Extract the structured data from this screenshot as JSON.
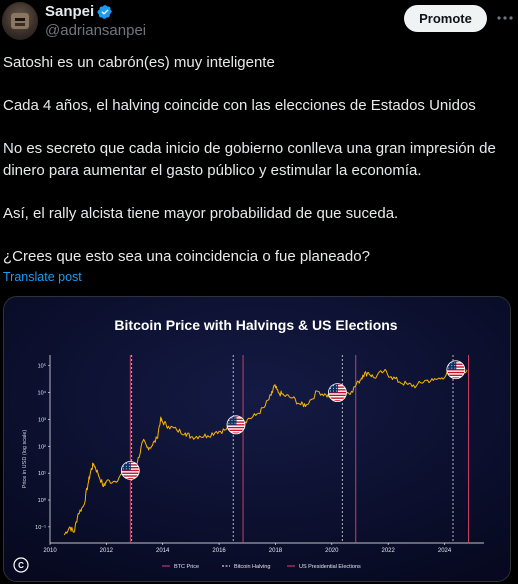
{
  "author": {
    "display_name": "Sanpei",
    "handle": "@adriansanpei",
    "verified": true,
    "verified_color": "#1d9bf0"
  },
  "header": {
    "promote_label": "Promote",
    "more_icon": "more-horizontal-icon"
  },
  "tweet": {
    "paragraphs": [
      "Satoshi es un cabrón(es) muy inteligente",
      "Cada 4 años, el halving coincide con las elecciones de Estados Unidos",
      "No es secreto que cada inicio de gobierno conlleva una gran impresión de dinero para aumentar el gasto público y estimular la economía.",
      "Así, el rally alcista tiene mayor probabilidad de que suceda.",
      "¿Crees que esto sea una coincidencia o fue planeado?"
    ],
    "translate_label": "Translate post"
  },
  "chart_data": {
    "type": "line",
    "title": "Bitcoin Price with Halvings & US Elections",
    "ylabel": "Price in USD (log scale)",
    "xlabel": "",
    "x_ticks": [
      "2010",
      "2012",
      "2014",
      "2016",
      "2018",
      "2020",
      "2022",
      "2024"
    ],
    "y_ticks": [
      "10⁻¹",
      "10⁰",
      "10¹",
      "10²",
      "10³",
      "10⁴",
      "10⁵"
    ],
    "xlim": [
      2010,
      2025.4
    ],
    "ylim_log10": [
      -1.6,
      5.4
    ],
    "series": [
      {
        "name": "BTC Price",
        "color": "#f7b500",
        "points": [
          [
            2010.5,
            -1.3
          ],
          [
            2010.7,
            -1.0
          ],
          [
            2010.85,
            -1.2
          ],
          [
            2011.0,
            -0.5
          ],
          [
            2011.2,
            -0.2
          ],
          [
            2011.35,
            0.6
          ],
          [
            2011.45,
            1.1
          ],
          [
            2011.55,
            1.35
          ],
          [
            2011.7,
            1.0
          ],
          [
            2011.9,
            0.5
          ],
          [
            2012.0,
            0.7
          ],
          [
            2012.3,
            0.7
          ],
          [
            2012.6,
            1.0
          ],
          [
            2012.85,
            1.05
          ],
          [
            2013.1,
            1.4
          ],
          [
            2013.3,
            2.2
          ],
          [
            2013.45,
            1.95
          ],
          [
            2013.6,
            2.0
          ],
          [
            2013.8,
            2.3
          ],
          [
            2013.92,
            3.0
          ],
          [
            2014.0,
            2.9
          ],
          [
            2014.2,
            2.75
          ],
          [
            2014.5,
            2.6
          ],
          [
            2014.8,
            2.5
          ],
          [
            2015.0,
            2.35
          ],
          [
            2015.3,
            2.38
          ],
          [
            2015.6,
            2.4
          ],
          [
            2015.9,
            2.55
          ],
          [
            2016.2,
            2.6
          ],
          [
            2016.5,
            2.8
          ],
          [
            2016.8,
            2.85
          ],
          [
            2017.0,
            3.0
          ],
          [
            2017.3,
            3.15
          ],
          [
            2017.6,
            3.45
          ],
          [
            2017.85,
            3.9
          ],
          [
            2017.96,
            4.25
          ],
          [
            2018.1,
            4.0
          ],
          [
            2018.3,
            3.9
          ],
          [
            2018.6,
            3.8
          ],
          [
            2018.9,
            3.55
          ],
          [
            2019.1,
            3.55
          ],
          [
            2019.5,
            4.05
          ],
          [
            2019.8,
            3.9
          ],
          [
            2020.0,
            3.85
          ],
          [
            2020.2,
            3.7
          ],
          [
            2020.4,
            3.95
          ],
          [
            2020.7,
            4.05
          ],
          [
            2020.95,
            4.4
          ],
          [
            2021.1,
            4.65
          ],
          [
            2021.3,
            4.75
          ],
          [
            2021.5,
            4.55
          ],
          [
            2021.85,
            4.8
          ],
          [
            2022.1,
            4.6
          ],
          [
            2022.4,
            4.4
          ],
          [
            2022.7,
            4.3
          ],
          [
            2023.0,
            4.25
          ],
          [
            2023.3,
            4.45
          ],
          [
            2023.6,
            4.45
          ],
          [
            2023.9,
            4.55
          ],
          [
            2024.2,
            4.8
          ],
          [
            2024.5,
            4.78
          ],
          [
            2024.8,
            4.85
          ]
        ]
      }
    ],
    "halvings": [
      2012.9,
      2016.5,
      2020.37,
      2024.3
    ],
    "elections": [
      2012.85,
      2016.85,
      2020.85,
      2024.85
    ],
    "flags": [
      [
        2012.85,
        1.1
      ],
      [
        2016.6,
        2.8
      ],
      [
        2020.2,
        4.0
      ],
      [
        2024.4,
        4.85
      ]
    ],
    "legend": [
      "BTC Price",
      "Bitcoin Halving",
      "US Presidential Elections"
    ],
    "legend_placement": "bottom",
    "colors": {
      "price": "#f7b500",
      "halving": "#ffffff",
      "election": "#d9466b",
      "background": "#0a0d2a"
    },
    "grid": false
  }
}
